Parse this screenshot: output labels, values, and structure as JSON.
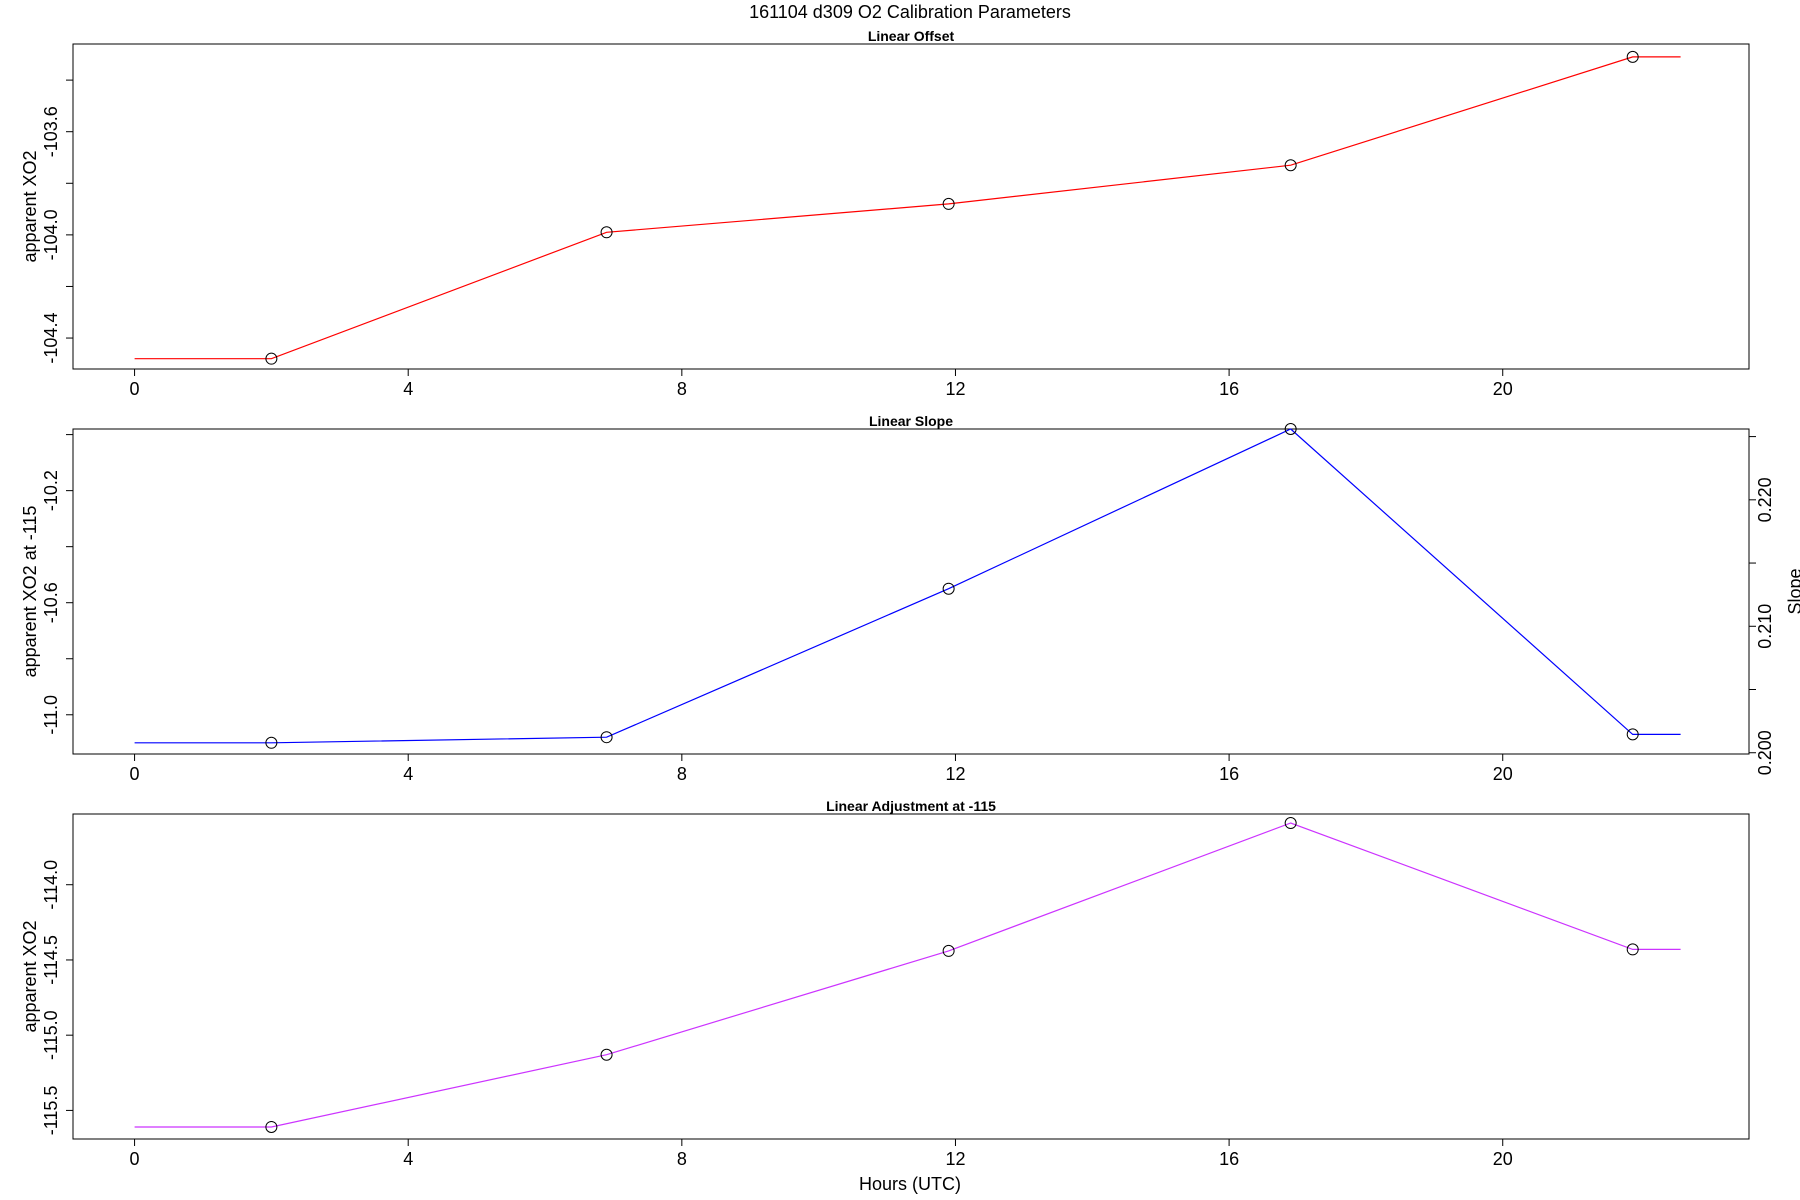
{
  "figure": {
    "title": "161104   d309   O2 Calibration Parameters",
    "xlabel": "Hours (UTC)"
  },
  "chart_data": [
    {
      "type": "line",
      "title": "Linear Offset",
      "xlabel": "",
      "ylabel": "apparent XO2",
      "xlim": [
        -0.9,
        23.6
      ],
      "ylim": [
        -104.52,
        -103.26
      ],
      "x_ticks": [
        0,
        4,
        8,
        12,
        16,
        20
      ],
      "y_ticks": [
        -104.4,
        -104.0,
        -103.6
      ],
      "y_minor_ticks": [
        -104.2,
        -103.8,
        -103.4
      ],
      "series": [
        {
          "color": "#ff0000",
          "x": [
            0,
            2,
            6.9,
            11.9,
            16.9,
            21.9,
            22.6
          ],
          "y": [
            -104.48,
            -104.48,
            -103.99,
            -103.88,
            -103.73,
            -103.31,
            -103.31
          ],
          "markers": [
            [
              2,
              -104.48
            ],
            [
              6.9,
              -103.99
            ],
            [
              11.9,
              -103.88
            ],
            [
              16.9,
              -103.73
            ],
            [
              21.9,
              -103.31
            ]
          ]
        }
      ]
    },
    {
      "type": "line",
      "title": "Linear Slope",
      "xlabel": "",
      "ylabel": "apparent XO2 at -115",
      "ylabel_right": "Slope",
      "xlim": [
        -0.9,
        23.6
      ],
      "ylim": [
        -11.14,
        -9.98
      ],
      "x_ticks": [
        0,
        4,
        8,
        12,
        16,
        20
      ],
      "y_ticks": [
        -11.0,
        -10.6,
        -10.2
      ],
      "y_minor_ticks": [
        -10.8,
        -10.4,
        -10.0
      ],
      "right_axis": {
        "ylim": [
          0.1999,
          0.2256
        ],
        "ticks": [
          0.2,
          0.21,
          0.22
        ],
        "tick_labels": [
          "0.200",
          "0.210",
          "0.220"
        ],
        "minor_ticks": [
          0.205,
          0.215,
          0.225
        ]
      },
      "series": [
        {
          "color": "#0000ff",
          "x": [
            0,
            2,
            6.9,
            11.9,
            16.9,
            21.9,
            22.6
          ],
          "y": [
            -11.1,
            -11.1,
            -11.08,
            -10.55,
            -9.98,
            -11.07,
            -11.07
          ],
          "markers": [
            [
              2,
              -11.1
            ],
            [
              6.9,
              -11.08
            ],
            [
              11.9,
              -10.55
            ],
            [
              16.9,
              -9.98
            ],
            [
              21.9,
              -11.07
            ]
          ]
        }
      ]
    },
    {
      "type": "line",
      "title": "Linear Adjustment at -115",
      "xlabel": "",
      "ylabel": "apparent XO2",
      "xlim": [
        -0.9,
        23.6
      ],
      "ylim": [
        -115.69,
        -113.53
      ],
      "x_ticks": [
        0,
        4,
        8,
        12,
        16,
        20
      ],
      "y_ticks": [
        -115.5,
        -115.0,
        -114.5,
        -114.0
      ],
      "y_minor_ticks": [],
      "series": [
        {
          "color": "#cc33ff",
          "x": [
            0,
            2,
            6.9,
            11.9,
            16.9,
            21.9,
            22.6
          ],
          "y": [
            -115.61,
            -115.61,
            -115.13,
            -114.44,
            -113.59,
            -114.43,
            -114.43
          ],
          "markers": [
            [
              2,
              -115.61
            ],
            [
              6.9,
              -115.13
            ],
            [
              11.9,
              -114.44
            ],
            [
              16.9,
              -113.59
            ],
            [
              21.9,
              -114.43
            ]
          ]
        }
      ]
    }
  ]
}
